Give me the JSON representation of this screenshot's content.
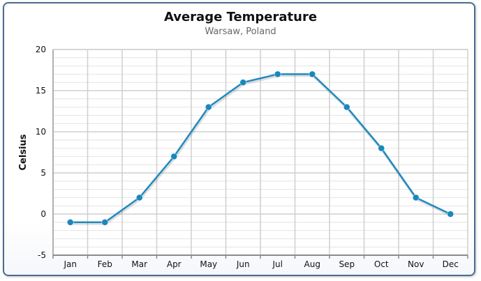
{
  "chart_data": {
    "type": "line",
    "title": "Average Temperature",
    "subtitle": "Warsaw, Poland",
    "xlabel": "",
    "ylabel": "Celsius",
    "categories": [
      "Jan",
      "Feb",
      "Mar",
      "Apr",
      "May",
      "Jun",
      "Jul",
      "Aug",
      "Sep",
      "Oct",
      "Nov",
      "Dec"
    ],
    "series": [
      {
        "name": "",
        "values": [
          -1,
          -1,
          2,
          7,
          13,
          16,
          17,
          17,
          13,
          8,
          2,
          0
        ]
      }
    ],
    "ylim": [
      -5,
      20
    ],
    "yticks": [
      -5,
      0,
      5,
      10,
      15,
      20
    ],
    "grid": true,
    "legend": "none",
    "colors": {
      "line": "#1f8bbf",
      "marker": "#1a87bd",
      "grid": "#cfcfcf",
      "frame": "#4a6c92"
    }
  }
}
